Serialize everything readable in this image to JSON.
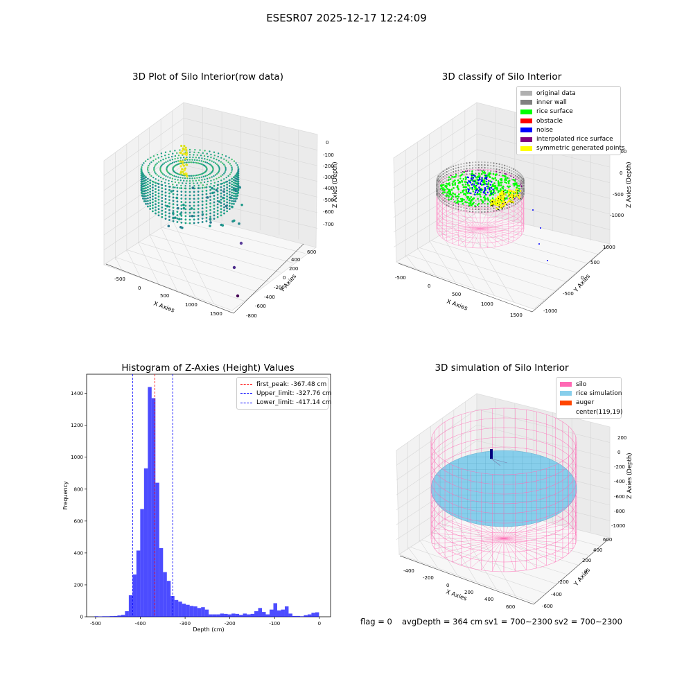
{
  "suptitle": "ESESR07 2025-12-17 12:24:09",
  "panels": {
    "raw": {
      "title": "3D Plot of Silo Interior(row data)",
      "xlabel": "X Axies",
      "ylabel": "Y Axies",
      "zlabel": "Z Axies (Depth)",
      "x_ticks": [
        "-500",
        "0",
        "500",
        "1000",
        "1500"
      ],
      "y_ticks": [
        "-800",
        "-600",
        "-400",
        "-200",
        "0",
        "200",
        "400",
        "600"
      ],
      "z_ticks": [
        "0",
        "-100",
        "-200",
        "-300",
        "-400",
        "-500",
        "-600",
        "-700"
      ]
    },
    "classify": {
      "title": "3D classify of Silo Interior",
      "xlabel": "X Axies",
      "ylabel": "Y Axies",
      "zlabel": "Z Axies (Depth)",
      "x_ticks": [
        "-500",
        "0",
        "500",
        "1000",
        "1500"
      ],
      "y_ticks": [
        "-1000",
        "-500",
        "0",
        "500",
        "1000"
      ],
      "z_ticks": [
        "500",
        "0",
        "-500",
        "-1000"
      ],
      "legend": [
        {
          "label": "original data",
          "color": "#b0b0b0"
        },
        {
          "label": "inner wall",
          "color": "#808080"
        },
        {
          "label": "rice surface",
          "color": "#00ff00"
        },
        {
          "label": "obstacle",
          "color": "#ff0000"
        },
        {
          "label": "noise",
          "color": "#0000ff"
        },
        {
          "label": "interpolated rice surface",
          "color": "#800080"
        },
        {
          "label": "symmetric generated points",
          "color": "#ffff00"
        }
      ]
    },
    "simulation": {
      "title": "3D simulation of Silo Interior",
      "xlabel": "X Axies",
      "ylabel": "Y Axies",
      "zlabel": "Z Axies (Depth)",
      "x_ticks": [
        "-400",
        "-200",
        "0",
        "200",
        "400",
        "600"
      ],
      "y_ticks": [
        "-600",
        "-400",
        "-200",
        "0",
        "200",
        "400",
        "600"
      ],
      "z_ticks": [
        "200",
        "0",
        "-200",
        "-400",
        "-600",
        "-800",
        "-1000"
      ],
      "legend": [
        {
          "label": "silo",
          "color": "#ff69b4"
        },
        {
          "label": "rice simulation",
          "color": "#87ceeb"
        },
        {
          "label": "auger",
          "color": "#ff4500"
        },
        {
          "label": "center(119,19)",
          "color": ""
        }
      ]
    }
  },
  "footer": {
    "flag": "flag = 0",
    "avg": "avgDepth = 364 cm",
    "sv1": "sv1 = 700~2300",
    "sv2": "sv2 = 700~2300"
  },
  "chart_data": {
    "type": "bar",
    "title": "Histogram of Z-Axies (Height) Values",
    "xlabel": "Depth (cm)",
    "ylabel": "Frequency",
    "xlim": [
      -520,
      25
    ],
    "ylim": [
      0,
      1520
    ],
    "x_ticks": [
      -500,
      -400,
      -300,
      -200,
      -100,
      0
    ],
    "y_ticks": [
      0,
      200,
      400,
      600,
      800,
      1000,
      1200,
      1400
    ],
    "bin_width": 8.5,
    "bins": [
      {
        "x": -498,
        "y": 3
      },
      {
        "x": -489.5,
        "y": 2
      },
      {
        "x": -481,
        "y": 3
      },
      {
        "x": -472.5,
        "y": 3
      },
      {
        "x": -464,
        "y": 4
      },
      {
        "x": -455.5,
        "y": 5
      },
      {
        "x": -447,
        "y": 8
      },
      {
        "x": -438.5,
        "y": 12
      },
      {
        "x": -430,
        "y": 35
      },
      {
        "x": -421.5,
        "y": 135
      },
      {
        "x": -413,
        "y": 265
      },
      {
        "x": -404.5,
        "y": 415
      },
      {
        "x": -396,
        "y": 675
      },
      {
        "x": -387.5,
        "y": 930
      },
      {
        "x": -379,
        "y": 1440
      },
      {
        "x": -370.5,
        "y": 1370
      },
      {
        "x": -362,
        "y": 840
      },
      {
        "x": -353.5,
        "y": 430
      },
      {
        "x": -345,
        "y": 280
      },
      {
        "x": -336.5,
        "y": 225
      },
      {
        "x": -328,
        "y": 130
      },
      {
        "x": -319.5,
        "y": 105
      },
      {
        "x": -311,
        "y": 95
      },
      {
        "x": -302.5,
        "y": 82
      },
      {
        "x": -294,
        "y": 75
      },
      {
        "x": -285.5,
        "y": 68
      },
      {
        "x": -277,
        "y": 65
      },
      {
        "x": -268.5,
        "y": 55
      },
      {
        "x": -260,
        "y": 60
      },
      {
        "x": -251.5,
        "y": 45
      },
      {
        "x": -243,
        "y": 15
      },
      {
        "x": -234.5,
        "y": 15
      },
      {
        "x": -226,
        "y": 15
      },
      {
        "x": -217.5,
        "y": 20
      },
      {
        "x": -209,
        "y": 18
      },
      {
        "x": -200.5,
        "y": 15
      },
      {
        "x": -192,
        "y": 20
      },
      {
        "x": -183.5,
        "y": 18
      },
      {
        "x": -175,
        "y": 12
      },
      {
        "x": -166.5,
        "y": 20
      },
      {
        "x": -158,
        "y": 15
      },
      {
        "x": -149.5,
        "y": 18
      },
      {
        "x": -141,
        "y": 35
      },
      {
        "x": -132.5,
        "y": 55
      },
      {
        "x": -124,
        "y": 30
      },
      {
        "x": -115.5,
        "y": 15
      },
      {
        "x": -107,
        "y": 45
      },
      {
        "x": -98.5,
        "y": 85
      },
      {
        "x": -90,
        "y": 40
      },
      {
        "x": -81.5,
        "y": 45
      },
      {
        "x": -73,
        "y": 65
      },
      {
        "x": -64.5,
        "y": 20
      },
      {
        "x": -56,
        "y": 5
      },
      {
        "x": -47.5,
        "y": 5
      },
      {
        "x": -39,
        "y": 3
      },
      {
        "x": -30.5,
        "y": 10
      },
      {
        "x": -22,
        "y": 15
      },
      {
        "x": -13.5,
        "y": 25
      },
      {
        "x": -5,
        "y": 28
      }
    ],
    "lines": [
      {
        "name": "first_peak: -367.48 cm",
        "x": -367.48,
        "color": "#ff0000"
      },
      {
        "name": "Upper_limit: -327.76 cm",
        "x": -327.76,
        "color": "#0000ff"
      },
      {
        "name": "Lower_limit: -417.14 cm",
        "x": -417.14,
        "color": "#0000ff"
      }
    ],
    "legend_position": "upper right"
  }
}
